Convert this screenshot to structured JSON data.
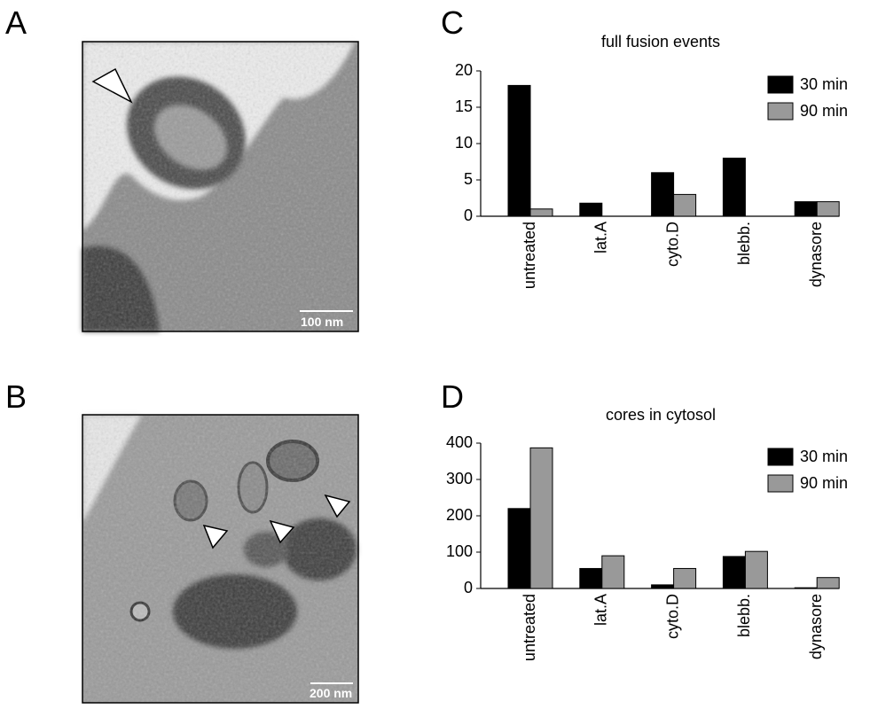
{
  "panel_labels": [
    "A",
    "B",
    "C",
    "D"
  ],
  "scale_bars": [
    "100 nm",
    "200 nm"
  ],
  "chart_data": [
    {
      "type": "bar",
      "title": "full fusion events",
      "categories": [
        "untreated",
        "lat.A",
        "cyto.D",
        "blebb.",
        "dynasore"
      ],
      "series": [
        {
          "name": "30 min",
          "color": "#000000",
          "values": [
            18,
            1.8,
            6,
            8,
            2
          ]
        },
        {
          "name": "90 min",
          "color": "#999999",
          "values": [
            1,
            0,
            3,
            0,
            2
          ]
        }
      ],
      "ylim": [
        0,
        20
      ],
      "yticks": [
        0,
        5,
        10,
        15,
        20
      ],
      "legend": "upper right"
    },
    {
      "type": "bar",
      "title": "cores in cytosol",
      "categories": [
        "untreated",
        "lat.A",
        "cyto.D",
        "blebb.",
        "dynasore"
      ],
      "series": [
        {
          "name": "30 min",
          "color": "#000000",
          "values": [
            220,
            55,
            10,
            88,
            2
          ]
        },
        {
          "name": "90 min",
          "color": "#999999",
          "values": [
            387,
            90,
            55,
            102,
            30
          ]
        }
      ],
      "ylim": [
        0,
        400
      ],
      "yticks": [
        0,
        100,
        200,
        300,
        400
      ],
      "legend": "upper right"
    }
  ]
}
